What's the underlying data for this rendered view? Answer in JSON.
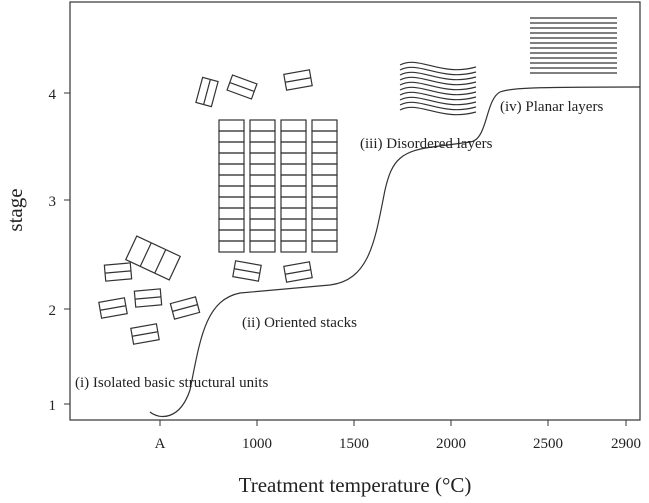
{
  "x_axis": {
    "label": "Treatment temperature (°C)",
    "ticks": [
      "A",
      "1000",
      "1500",
      "2000",
      "2500",
      "2900"
    ]
  },
  "y_axis": {
    "label": "stage",
    "ticks": [
      "1",
      "2",
      "3",
      "4"
    ]
  },
  "annotations": [
    "(i) Isolated basic structural units",
    "(ii) Oriented stacks",
    "(iii) Disordered layers",
    "(iv) Planar layers"
  ]
}
